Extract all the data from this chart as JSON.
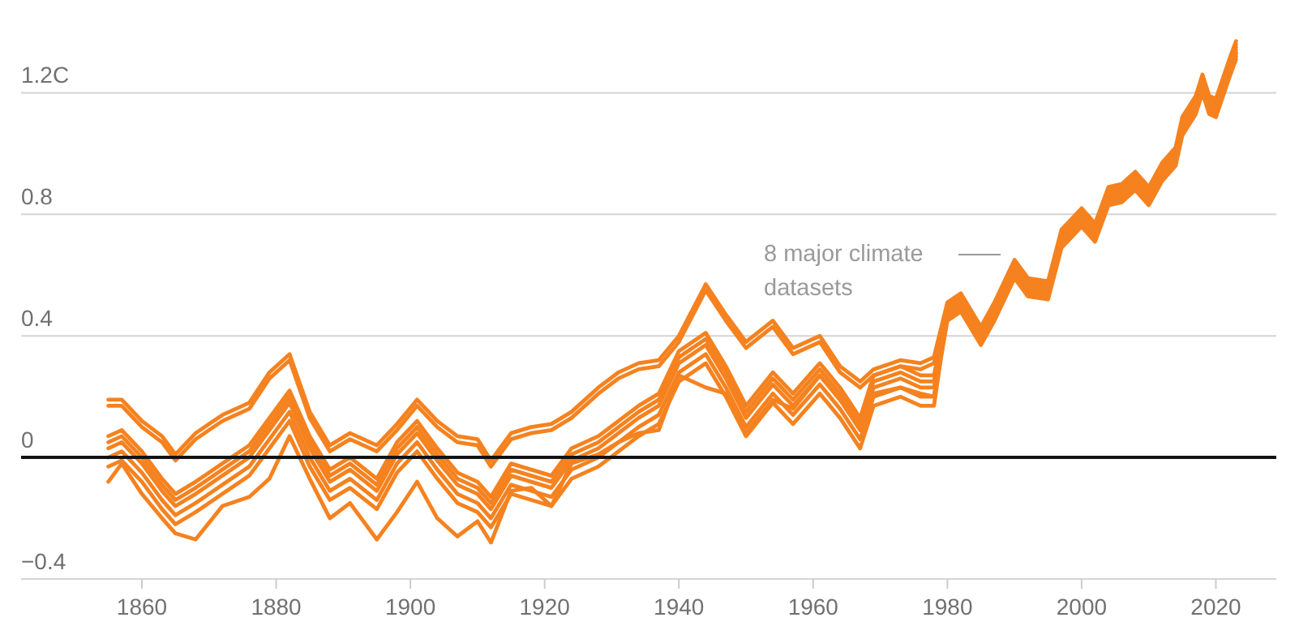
{
  "chart_data": {
    "type": "line",
    "xlim": [
      1842,
      2029
    ],
    "ylim": [
      -0.4,
      1.5
    ],
    "xticks": [
      1860,
      1880,
      1900,
      1920,
      1940,
      1960,
      1980,
      2000,
      2020
    ],
    "yticks": [
      {
        "value": -0.4,
        "label": "−0.4"
      },
      0,
      0.4,
      0.8,
      {
        "value": 1.2,
        "label": "1.2C"
      }
    ],
    "grid": "y",
    "marker": "none",
    "line_style": "solid",
    "ref_lines": [
      {
        "axis": "y",
        "value": 0,
        "color": "#121212"
      }
    ],
    "annotations": [
      "8 major climate datasets"
    ],
    "x": [
      1855,
      1857,
      1860,
      1863,
      1865,
      1868,
      1872,
      1876,
      1879,
      1882,
      1885,
      1888,
      1891,
      1895,
      1898,
      1901,
      1904,
      1907,
      1910,
      1912,
      1915,
      1918,
      1921,
      1924,
      1928,
      1931,
      1934,
      1937,
      1940,
      1944,
      1947,
      1950,
      1954,
      1957,
      1961,
      1964,
      1967,
      1969,
      1973,
      1976,
      1978,
      1980,
      1982,
      1985,
      1987,
      1990,
      1992,
      1995,
      1997,
      2000,
      2002,
      2004,
      2006,
      2008,
      2010,
      2012,
      2014,
      2015,
      2017,
      2018,
      2019,
      2020,
      2022,
      2023
    ],
    "series": [
      {
        "color": "#f5821f",
        "values": [
          0.19,
          0.19,
          0.12,
          0.07,
          0.01,
          0.08,
          0.14,
          0.18,
          0.28,
          0.34,
          0.15,
          0.04,
          0.08,
          0.04,
          0.11,
          0.19,
          0.12,
          0.07,
          0.06,
          -0.01,
          0.08,
          0.1,
          0.11,
          0.15,
          0.23,
          0.28,
          0.31,
          0.32,
          0.4,
          0.57,
          0.47,
          0.38,
          0.45,
          0.36,
          0.4,
          0.3,
          0.25,
          0.29,
          0.32,
          0.31,
          0.33,
          0.51,
          0.54,
          0.43,
          0.51,
          0.65,
          0.59,
          0.58,
          0.75,
          0.82,
          0.77,
          0.89,
          0.9,
          0.94,
          0.89,
          0.97,
          1.02,
          1.12,
          1.19,
          1.26,
          1.19,
          1.18,
          1.31,
          1.37
        ]
      },
      {
        "color": "#f5821f",
        "values": [
          0.17,
          0.17,
          0.1,
          0.05,
          -0.01,
          0.06,
          0.12,
          0.16,
          0.26,
          0.32,
          0.13,
          0.02,
          0.06,
          0.02,
          0.09,
          0.17,
          0.1,
          0.05,
          0.04,
          -0.03,
          0.06,
          0.08,
          0.09,
          0.13,
          0.21,
          0.26,
          0.29,
          0.3,
          0.38,
          0.55,
          0.45,
          0.36,
          0.43,
          0.34,
          0.38,
          0.28,
          0.23,
          0.27,
          0.3,
          0.29,
          0.31,
          0.5,
          0.53,
          0.42,
          0.5,
          0.64,
          0.58,
          0.57,
          0.74,
          0.81,
          0.76,
          0.88,
          0.89,
          0.93,
          0.88,
          0.96,
          1.01,
          1.11,
          1.18,
          1.25,
          1.18,
          1.17,
          1.3,
          1.36
        ]
      },
      {
        "color": "#f5821f",
        "values": [
          0.07,
          0.09,
          0.02,
          -0.07,
          -0.12,
          -0.08,
          -0.02,
          0.04,
          0.13,
          0.22,
          0.07,
          -0.04,
          0.0,
          -0.07,
          0.05,
          0.12,
          0.03,
          -0.05,
          -0.08,
          -0.13,
          -0.02,
          -0.04,
          -0.06,
          0.03,
          0.07,
          0.12,
          0.17,
          0.21,
          0.35,
          0.41,
          0.3,
          0.17,
          0.28,
          0.21,
          0.31,
          0.23,
          0.13,
          0.27,
          0.3,
          0.27,
          0.27,
          0.49,
          0.52,
          0.41,
          0.49,
          0.63,
          0.57,
          0.56,
          0.73,
          0.8,
          0.75,
          0.87,
          0.88,
          0.92,
          0.87,
          0.95,
          1.0,
          1.1,
          1.17,
          1.24,
          1.17,
          1.16,
          1.29,
          1.35
        ]
      },
      {
        "color": "#f5821f",
        "values": [
          0.05,
          0.07,
          0.0,
          -0.09,
          -0.14,
          -0.1,
          -0.04,
          0.02,
          0.11,
          0.2,
          0.05,
          -0.06,
          -0.02,
          -0.09,
          0.03,
          0.1,
          0.01,
          -0.07,
          -0.1,
          -0.15,
          -0.04,
          -0.06,
          -0.08,
          0.01,
          0.05,
          0.1,
          0.15,
          0.19,
          0.33,
          0.39,
          0.28,
          0.15,
          0.26,
          0.19,
          0.29,
          0.21,
          0.11,
          0.25,
          0.28,
          0.25,
          0.25,
          0.48,
          0.51,
          0.4,
          0.48,
          0.62,
          0.56,
          0.55,
          0.72,
          0.79,
          0.74,
          0.86,
          0.87,
          0.91,
          0.86,
          0.94,
          0.99,
          1.09,
          1.16,
          1.23,
          1.16,
          1.15,
          1.28,
          1.34
        ]
      },
      {
        "color": "#f5821f",
        "values": [
          0.03,
          0.05,
          -0.02,
          -0.11,
          -0.16,
          -0.12,
          -0.06,
          0.0,
          0.09,
          0.18,
          0.03,
          -0.08,
          -0.04,
          -0.11,
          0.01,
          0.08,
          -0.01,
          -0.09,
          -0.12,
          -0.17,
          -0.06,
          -0.08,
          -0.1,
          -0.01,
          0.03,
          0.08,
          0.13,
          0.17,
          0.31,
          0.37,
          0.26,
          0.13,
          0.24,
          0.17,
          0.27,
          0.19,
          0.09,
          0.23,
          0.26,
          0.23,
          0.23,
          0.47,
          0.5,
          0.39,
          0.47,
          0.61,
          0.55,
          0.54,
          0.71,
          0.78,
          0.73,
          0.85,
          0.86,
          0.9,
          0.85,
          0.93,
          0.98,
          1.08,
          1.15,
          1.22,
          1.15,
          1.14,
          1.27,
          1.33
        ]
      },
      {
        "color": "#f5821f",
        "values": [
          0.0,
          0.02,
          -0.05,
          -0.14,
          -0.19,
          -0.15,
          -0.09,
          -0.03,
          0.06,
          0.15,
          0.0,
          -0.11,
          -0.07,
          -0.14,
          -0.02,
          0.05,
          -0.04,
          -0.12,
          -0.15,
          -0.2,
          -0.09,
          -0.11,
          -0.13,
          -0.04,
          0.0,
          0.05,
          0.1,
          0.14,
          0.28,
          0.34,
          0.23,
          0.1,
          0.21,
          0.14,
          0.24,
          0.16,
          0.06,
          0.2,
          0.23,
          0.2,
          0.2,
          0.46,
          0.49,
          0.38,
          0.46,
          0.6,
          0.54,
          0.53,
          0.7,
          0.77,
          0.72,
          0.84,
          0.85,
          0.89,
          0.84,
          0.92,
          0.97,
          1.07,
          1.14,
          1.21,
          1.14,
          1.13,
          1.26,
          1.32
        ]
      },
      {
        "color": "#f5821f",
        "values": [
          -0.03,
          -0.01,
          -0.08,
          -0.17,
          -0.22,
          -0.18,
          -0.12,
          -0.06,
          0.03,
          0.12,
          -0.03,
          -0.14,
          -0.1,
          -0.17,
          -0.05,
          0.02,
          -0.07,
          -0.15,
          -0.18,
          -0.23,
          -0.12,
          -0.14,
          -0.16,
          -0.07,
          -0.03,
          0.02,
          0.07,
          0.11,
          0.25,
          0.31,
          0.2,
          0.07,
          0.18,
          0.11,
          0.21,
          0.13,
          0.03,
          0.17,
          0.2,
          0.17,
          0.17,
          0.47,
          0.5,
          0.39,
          0.47,
          0.61,
          0.55,
          0.54,
          0.71,
          0.78,
          0.73,
          0.85,
          0.86,
          0.9,
          0.85,
          0.93,
          0.98,
          1.08,
          1.15,
          1.22,
          1.15,
          1.14,
          1.27,
          1.33
        ]
      },
      {
        "color": "#f5821f",
        "values": [
          -0.08,
          -0.02,
          -0.12,
          -0.2,
          -0.25,
          -0.27,
          -0.16,
          -0.13,
          -0.07,
          0.07,
          -0.07,
          -0.2,
          -0.15,
          -0.27,
          -0.18,
          -0.08,
          -0.2,
          -0.26,
          -0.21,
          -0.28,
          -0.11,
          -0.1,
          -0.16,
          -0.02,
          0.01,
          0.05,
          0.08,
          0.09,
          0.27,
          0.23,
          0.21,
          0.08,
          0.19,
          0.16,
          0.27,
          0.19,
          0.1,
          0.21,
          0.23,
          0.21,
          0.2,
          0.45,
          0.48,
          0.37,
          0.45,
          0.59,
          0.53,
          0.52,
          0.69,
          0.76,
          0.71,
          0.83,
          0.84,
          0.88,
          0.83,
          0.91,
          0.96,
          1.06,
          1.13,
          1.2,
          1.13,
          1.12,
          1.25,
          1.31
        ]
      }
    ]
  }
}
